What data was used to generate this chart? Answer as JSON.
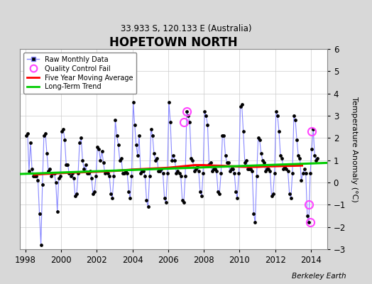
{
  "title": "HOPETOWN NORTH",
  "subtitle": "33.933 S, 120.133 E (Australia)",
  "ylabel": "Temperature Anomaly (°C)",
  "credit": "Berkeley Earth",
  "ylim": [
    -3,
    6
  ],
  "xlim": [
    1997.7,
    2014.9
  ],
  "yticks": [
    -3,
    -2,
    -1,
    0,
    1,
    2,
    3,
    4,
    5,
    6
  ],
  "xticks": [
    1998,
    2000,
    2002,
    2004,
    2006,
    2008,
    2010,
    2012,
    2014
  ],
  "bg_color": "#d8d8d8",
  "plot_bg_color": "#ffffff",
  "raw_color": "#8888ff",
  "raw_dot_color": "#000000",
  "ma_color": "#ff0000",
  "trend_color": "#00cc00",
  "qc_color": "#ff44ff",
  "raw_data": {
    "times": [
      1998.042,
      1998.125,
      1998.208,
      1998.292,
      1998.375,
      1998.458,
      1998.542,
      1998.625,
      1998.708,
      1998.792,
      1998.875,
      1998.958,
      1999.042,
      1999.125,
      1999.208,
      1999.292,
      1999.375,
      1999.458,
      1999.542,
      1999.625,
      1999.708,
      1999.792,
      1999.875,
      1999.958,
      2000.042,
      2000.125,
      2000.208,
      2000.292,
      2000.375,
      2000.458,
      2000.542,
      2000.625,
      2000.708,
      2000.792,
      2000.875,
      2000.958,
      2001.042,
      2001.125,
      2001.208,
      2001.292,
      2001.375,
      2001.458,
      2001.542,
      2001.625,
      2001.708,
      2001.792,
      2001.875,
      2001.958,
      2002.042,
      2002.125,
      2002.208,
      2002.292,
      2002.375,
      2002.458,
      2002.542,
      2002.625,
      2002.708,
      2002.792,
      2002.875,
      2002.958,
      2003.042,
      2003.125,
      2003.208,
      2003.292,
      2003.375,
      2003.458,
      2003.542,
      2003.625,
      2003.708,
      2003.792,
      2003.875,
      2003.958,
      2004.042,
      2004.125,
      2004.208,
      2004.292,
      2004.375,
      2004.458,
      2004.542,
      2004.625,
      2004.708,
      2004.792,
      2004.875,
      2004.958,
      2005.042,
      2005.125,
      2005.208,
      2005.292,
      2005.375,
      2005.458,
      2005.542,
      2005.625,
      2005.708,
      2005.792,
      2005.875,
      2005.958,
      2006.042,
      2006.125,
      2006.208,
      2006.292,
      2006.375,
      2006.458,
      2006.542,
      2006.625,
      2006.708,
      2006.792,
      2006.875,
      2006.958,
      2007.042,
      2007.125,
      2007.208,
      2007.292,
      2007.375,
      2007.458,
      2007.542,
      2007.625,
      2007.708,
      2007.792,
      2007.875,
      2007.958,
      2008.042,
      2008.125,
      2008.208,
      2008.292,
      2008.375,
      2008.458,
      2008.542,
      2008.625,
      2008.708,
      2008.792,
      2008.875,
      2008.958,
      2009.042,
      2009.125,
      2009.208,
      2009.292,
      2009.375,
      2009.458,
      2009.542,
      2009.625,
      2009.708,
      2009.792,
      2009.875,
      2009.958,
      2010.042,
      2010.125,
      2010.208,
      2010.292,
      2010.375,
      2010.458,
      2010.542,
      2010.625,
      2010.708,
      2010.792,
      2010.875,
      2010.958,
      2011.042,
      2011.125,
      2011.208,
      2011.292,
      2011.375,
      2011.458,
      2011.542,
      2011.625,
      2011.708,
      2011.792,
      2011.875,
      2011.958,
      2012.042,
      2012.125,
      2012.208,
      2012.292,
      2012.375,
      2012.458,
      2012.542,
      2012.625,
      2012.708,
      2012.792,
      2012.875,
      2012.958,
      2013.042,
      2013.125,
      2013.208,
      2013.292,
      2013.375,
      2013.458,
      2013.542,
      2013.625,
      2013.708,
      2013.792,
      2013.875,
      2013.958,
      2014.042,
      2014.125,
      2014.208,
      2014.292,
      2014.375
    ],
    "values": [
      2.1,
      2.2,
      0.5,
      1.8,
      0.6,
      0.3,
      0.3,
      0.3,
      0.1,
      -1.4,
      -2.8,
      -0.1,
      2.1,
      2.2,
      1.3,
      0.5,
      0.6,
      0.3,
      0.4,
      0.4,
      0.0,
      -1.3,
      0.2,
      0.3,
      2.3,
      2.4,
      1.9,
      0.8,
      0.8,
      0.4,
      0.3,
      0.4,
      0.2,
      -0.6,
      -0.5,
      0.4,
      1.8,
      2.0,
      1.0,
      0.6,
      0.8,
      0.4,
      0.4,
      0.5,
      0.2,
      -0.5,
      -0.4,
      0.3,
      1.6,
      1.5,
      1.0,
      1.4,
      0.9,
      0.4,
      0.5,
      0.4,
      0.3,
      -0.5,
      -0.7,
      0.3,
      2.8,
      2.1,
      1.7,
      1.0,
      1.1,
      0.4,
      0.4,
      0.5,
      0.4,
      -0.4,
      -0.7,
      0.3,
      3.6,
      2.6,
      1.7,
      1.2,
      2.1,
      0.4,
      0.5,
      0.5,
      0.3,
      -0.8,
      -1.1,
      0.3,
      2.4,
      2.1,
      1.3,
      1.0,
      1.1,
      0.5,
      0.5,
      0.6,
      0.4,
      -0.7,
      -0.9,
      0.4,
      3.6,
      2.7,
      1.0,
      1.2,
      1.0,
      0.4,
      0.5,
      0.4,
      0.3,
      -0.8,
      -0.9,
      0.3,
      3.2,
      3.0,
      2.7,
      1.1,
      1.0,
      0.5,
      0.6,
      0.7,
      0.5,
      -0.4,
      -0.6,
      0.4,
      3.2,
      3.0,
      2.6,
      0.8,
      0.9,
      0.5,
      0.6,
      0.6,
      0.5,
      -0.4,
      -0.5,
      0.4,
      2.1,
      2.1,
      1.2,
      0.9,
      0.9,
      0.5,
      0.6,
      0.6,
      0.4,
      -0.4,
      -0.7,
      0.4,
      3.4,
      3.5,
      2.3,
      0.9,
      1.0,
      0.6,
      0.6,
      0.6,
      0.5,
      -1.4,
      -1.8,
      0.3,
      2.0,
      1.9,
      1.3,
      1.0,
      0.9,
      0.5,
      0.6,
      0.6,
      0.5,
      -0.6,
      -0.5,
      0.4,
      3.2,
      3.0,
      2.3,
      1.2,
      1.1,
      0.6,
      0.7,
      0.6,
      0.5,
      -0.5,
      -0.7,
      0.4,
      3.0,
      2.8,
      1.9,
      1.2,
      1.1,
      0.1,
      0.4,
      0.6,
      0.4,
      -1.5,
      -1.8,
      0.4,
      1.5,
      2.4,
      1.2,
      1.0,
      1.1
    ]
  },
  "qc_fail_points": [
    [
      2006.875,
      2.7
    ],
    [
      2007.042,
      3.2
    ],
    [
      2013.875,
      -1.0
    ],
    [
      2013.958,
      -1.8
    ],
    [
      2014.042,
      2.3
    ]
  ],
  "moving_avg": {
    "times": [
      1998.5,
      1999.0,
      1999.5,
      2000.0,
      2000.5,
      2001.0,
      2001.5,
      2002.0,
      2002.5,
      2003.0,
      2003.5,
      2004.0,
      2004.5,
      2005.0,
      2005.5,
      2006.0,
      2006.5,
      2007.0,
      2007.5,
      2008.0,
      2008.5,
      2009.0,
      2009.5,
      2010.0,
      2010.5,
      2011.0,
      2011.5,
      2012.0,
      2012.5,
      2013.0,
      2013.5
    ],
    "values": [
      0.35,
      0.38,
      0.4,
      0.42,
      0.44,
      0.45,
      0.47,
      0.48,
      0.5,
      0.52,
      0.55,
      0.58,
      0.6,
      0.62,
      0.64,
      0.66,
      0.7,
      0.74,
      0.78,
      0.78,
      0.76,
      0.75,
      0.73,
      0.71,
      0.7,
      0.7,
      0.72,
      0.73,
      0.74,
      0.75,
      0.76
    ]
  },
  "trend": {
    "times": [
      1997.7,
      2014.9
    ],
    "values": [
      0.38,
      0.88
    ]
  }
}
